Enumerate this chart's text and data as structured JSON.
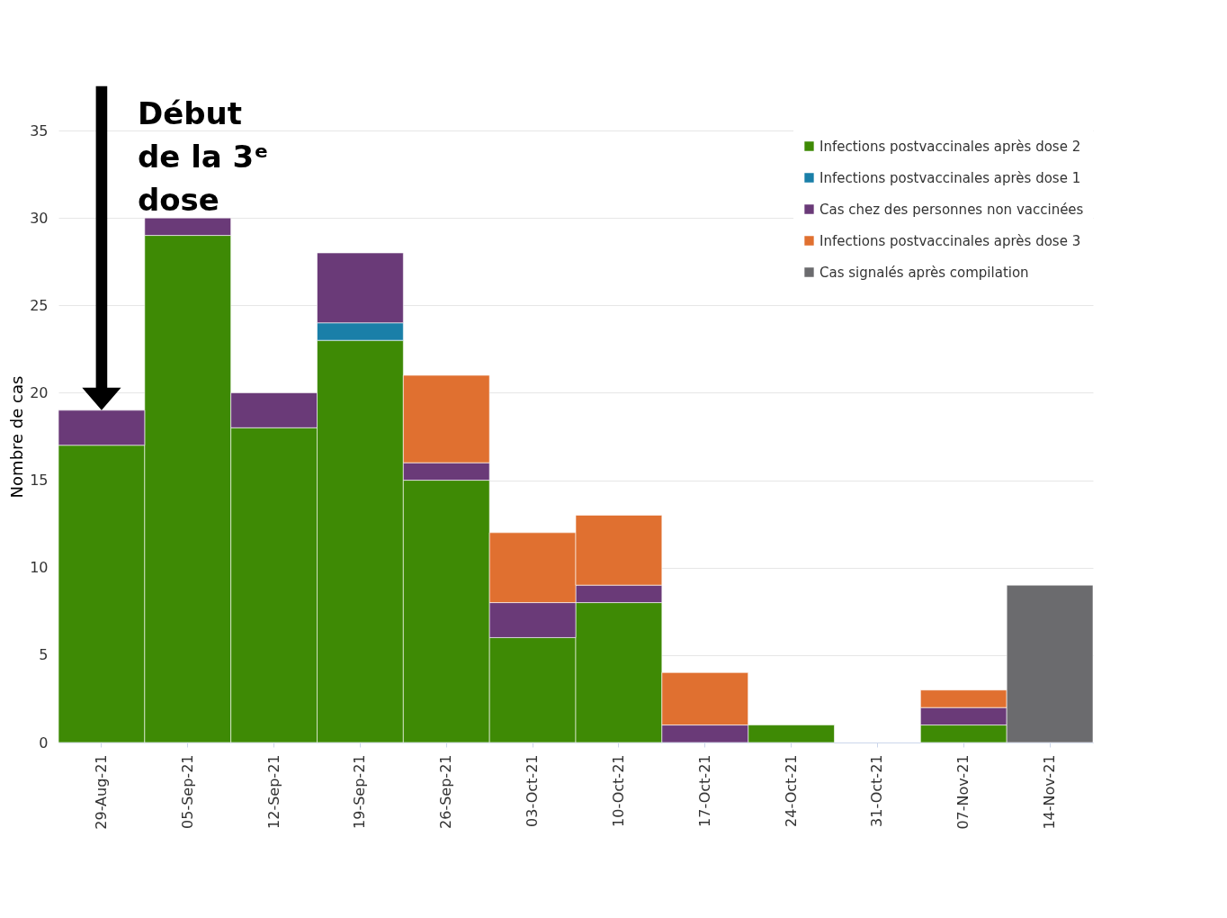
{
  "chart_data": {
    "type": "bar",
    "stacked": true,
    "ylabel": "Nombre de cas",
    "categories": [
      "29-Aug-21",
      "05-Sep-21",
      "12-Sep-21",
      "19-Sep-21",
      "26-Sep-21",
      "03-Oct-21",
      "10-Oct-21",
      "17-Oct-21",
      "24-Oct-21",
      "31-Oct-21",
      "07-Nov-21",
      "14-Nov-21"
    ],
    "series": [
      {
        "name": "Infections postvaccinales après dose 2",
        "color": "#3e8a05",
        "values": [
          17,
          29,
          18,
          23,
          15,
          6,
          8,
          null,
          1,
          null,
          1,
          null
        ]
      },
      {
        "name": "Infections postvaccinales après dose 1",
        "color": "#1a7fa8",
        "values": [
          null,
          null,
          null,
          1,
          null,
          null,
          null,
          null,
          null,
          null,
          null,
          null
        ]
      },
      {
        "name": "Cas chez des personnes non vaccinées",
        "color": "#6a3a78",
        "values": [
          2,
          1,
          2,
          4,
          1,
          2,
          1,
          1,
          null,
          null,
          1,
          null
        ]
      },
      {
        "name": "Infections postvaccinales après dose 3",
        "color": "#e07030",
        "values": [
          null,
          null,
          null,
          null,
          5,
          4,
          4,
          3,
          null,
          null,
          1,
          null
        ]
      },
      {
        "name": "Cas signalés après compilation",
        "color": "#6b6b6e",
        "values": [
          null,
          null,
          null,
          null,
          null,
          null,
          null,
          null,
          null,
          null,
          null,
          9
        ]
      }
    ],
    "ylim": [
      0,
      35
    ],
    "yticks": [
      0,
      5,
      10,
      15,
      20,
      25,
      30,
      35
    ],
    "grid": "y",
    "legend": "top right",
    "annotations": [
      "Début de la 3ᵉ dose"
    ]
  }
}
